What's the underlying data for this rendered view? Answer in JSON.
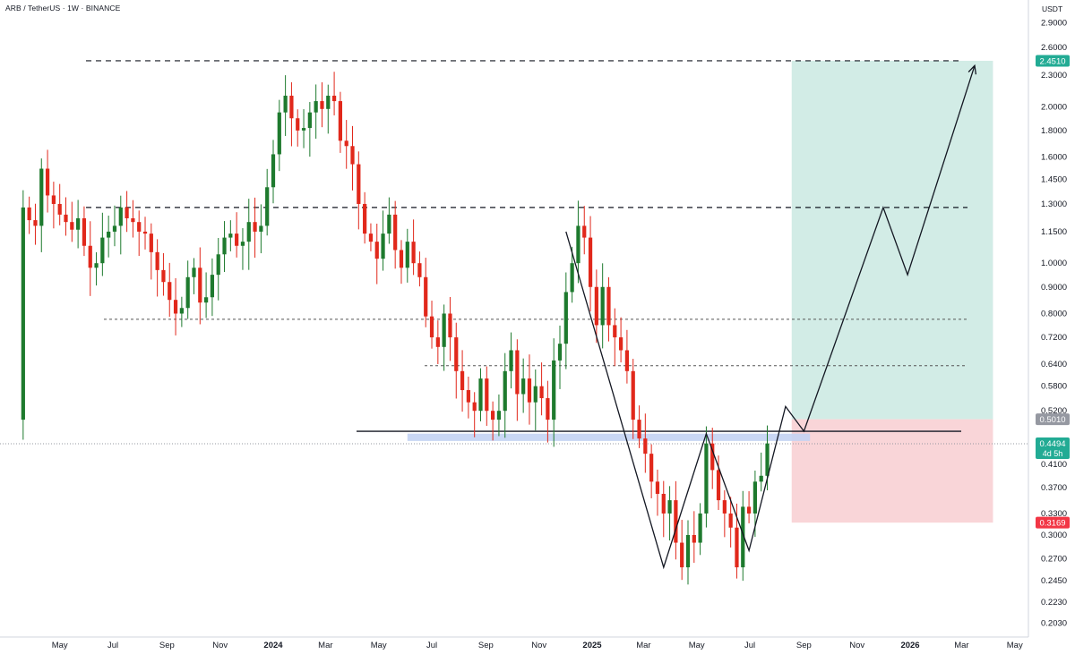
{
  "header": {
    "symbol": "ARB / TetherUS · 1W · BINANCE",
    "currency": "USDT"
  },
  "chart_data": {
    "type": "candlestick",
    "price_scale": "log",
    "y_ticks": [
      2.9,
      2.6,
      2.3,
      2.0,
      1.8,
      1.6,
      1.45,
      1.3,
      1.15,
      1.0,
      0.9,
      0.8,
      0.72,
      0.64,
      0.58,
      0.52,
      0.45,
      0.41,
      0.37,
      0.33,
      0.3,
      0.27,
      0.245,
      0.223,
      0.203
    ],
    "y_tick_labels": [
      "2.9000",
      "2.6000",
      "2.3000",
      "2.0000",
      "1.8000",
      "1.6000",
      "1.4500",
      "1.3000",
      "1.1500",
      "1.0000",
      "0.9000",
      "0.8000",
      "0.7200",
      "0.6400",
      "0.5800",
      "0.5200",
      "0.4500",
      "0.4100",
      "0.3700",
      "0.3300",
      "0.3000",
      "0.2700",
      "0.2450",
      "0.2230",
      "0.2030"
    ],
    "x_ticks": [
      {
        "label": "May",
        "date": "2023-05-01"
      },
      {
        "label": "Jul",
        "date": "2023-07-01"
      },
      {
        "label": "Sep",
        "date": "2023-09-01"
      },
      {
        "label": "Nov",
        "date": "2023-11-01"
      },
      {
        "label": "2024",
        "date": "2024-01-01",
        "bold": true
      },
      {
        "label": "Mar",
        "date": "2024-03-01"
      },
      {
        "label": "May",
        "date": "2024-05-01"
      },
      {
        "label": "Jul",
        "date": "2024-07-01"
      },
      {
        "label": "Sep",
        "date": "2024-09-01"
      },
      {
        "label": "Nov",
        "date": "2024-11-01"
      },
      {
        "label": "2025",
        "date": "2025-01-01",
        "bold": true
      },
      {
        "label": "Mar",
        "date": "2025-03-01"
      },
      {
        "label": "May",
        "date": "2025-05-01"
      },
      {
        "label": "Jul",
        "date": "2025-07-01"
      },
      {
        "label": "Sep",
        "date": "2025-09-01"
      },
      {
        "label": "Nov",
        "date": "2025-11-01"
      },
      {
        "label": "2026",
        "date": "2026-01-01",
        "bold": true
      },
      {
        "label": "Mar",
        "date": "2026-03-01"
      },
      {
        "label": "May",
        "date": "2026-05-01"
      }
    ],
    "candles_weekly_closes": [
      1.28,
      1.21,
      1.18,
      1.52,
      1.35,
      1.3,
      1.24,
      1.2,
      1.16,
      1.22,
      1.08,
      0.98,
      1.0,
      1.12,
      1.15,
      1.18,
      1.28,
      1.22,
      1.2,
      1.15,
      1.14,
      1.05,
      0.97,
      0.92,
      0.85,
      0.8,
      0.82,
      0.94,
      0.98,
      0.84,
      0.86,
      0.95,
      1.04,
      1.12,
      1.14,
      1.08,
      1.1,
      1.2,
      1.15,
      1.18,
      1.4,
      1.62,
      1.95,
      2.1,
      1.9,
      1.8,
      1.82,
      1.95,
      2.05,
      1.98,
      2.1,
      2.05,
      1.72,
      1.68,
      1.55,
      1.3,
      1.14,
      1.1,
      1.02,
      1.14,
      1.24,
      1.06,
      0.98,
      1.1,
      1.0,
      0.94,
      0.79,
      0.72,
      0.69,
      0.8,
      0.72,
      0.62,
      0.57,
      0.54,
      0.52,
      0.6,
      0.52,
      0.5,
      0.52,
      0.62,
      0.68,
      0.56,
      0.6,
      0.54,
      0.58,
      0.55,
      0.5,
      0.65,
      0.7,
      0.88,
      1.0,
      1.18,
      1.12,
      0.9,
      0.76,
      0.9,
      0.76,
      0.72,
      0.68,
      0.62,
      0.5,
      0.46,
      0.43,
      0.38,
      0.36,
      0.33,
      0.35,
      0.29,
      0.26,
      0.3,
      0.29,
      0.33,
      0.45,
      0.4,
      0.35,
      0.33,
      0.31,
      0.26,
      0.34,
      0.33,
      0.38,
      0.39,
      0.45
    ],
    "candles_weekly_opens": [
      0.5,
      1.28,
      1.21,
      1.18,
      1.52,
      1.35,
      1.3,
      1.24,
      1.2,
      1.16,
      1.22,
      1.08,
      0.98,
      1.0,
      1.12,
      1.15,
      1.18,
      1.28,
      1.22,
      1.2,
      1.15,
      1.14,
      1.05,
      0.97,
      0.92,
      0.85,
      0.8,
      0.82,
      0.94,
      0.98,
      0.84,
      0.86,
      0.95,
      1.04,
      1.12,
      1.14,
      1.08,
      1.1,
      1.2,
      1.15,
      1.18,
      1.4,
      1.62,
      1.95,
      2.1,
      1.9,
      1.8,
      1.82,
      1.95,
      2.05,
      1.98,
      2.1,
      2.05,
      1.72,
      1.68,
      1.55,
      1.3,
      1.14,
      1.1,
      1.02,
      1.14,
      1.24,
      1.06,
      0.98,
      1.1,
      1.0,
      0.94,
      0.79,
      0.72,
      0.69,
      0.8,
      0.72,
      0.62,
      0.57,
      0.54,
      0.52,
      0.6,
      0.52,
      0.5,
      0.52,
      0.62,
      0.68,
      0.56,
      0.6,
      0.54,
      0.58,
      0.55,
      0.5,
      0.65,
      0.7,
      0.88,
      1.0,
      1.18,
      1.12,
      0.9,
      0.76,
      0.9,
      0.76,
      0.72,
      0.68,
      0.62,
      0.5,
      0.46,
      0.43,
      0.38,
      0.36,
      0.33,
      0.35,
      0.29,
      0.26,
      0.3,
      0.29,
      0.33,
      0.45,
      0.4,
      0.35,
      0.33,
      0.31,
      0.26,
      0.34,
      0.33,
      0.38,
      0.39
    ],
    "first_candle_date": "2023-03-20",
    "levels": {
      "top_dashed": 2.451,
      "upper_dashed": 1.28,
      "mid_dotted_1": 0.78,
      "mid_dotted_2": 0.635,
      "support_line": 0.475,
      "support_zone_top": 0.47,
      "support_zone_bottom": 0.455
    },
    "position": {
      "entry": 0.501,
      "target": 2.451,
      "stop": 0.3169,
      "start_date": "2025-08-18",
      "end_date": "2026-04-06"
    },
    "projection_path": [
      {
        "date": "2024-12-02",
        "price": 1.15
      },
      {
        "date": "2025-03-24",
        "price": 0.26
      },
      {
        "date": "2025-05-12",
        "price": 0.47
      },
      {
        "date": "2025-06-30",
        "price": 0.28
      },
      {
        "date": "2025-08-11",
        "price": 0.53
      },
      {
        "date": "2025-09-01",
        "price": 0.475
      },
      {
        "date": "2025-12-01",
        "price": 1.28
      },
      {
        "date": "2025-12-29",
        "price": 0.95
      },
      {
        "date": "2026-03-16",
        "price": 2.4
      }
    ],
    "price_tags": [
      {
        "value": "2.4510",
        "price": 2.451,
        "color": "#22ab94"
      },
      {
        "value": "0.5010",
        "price": 0.501,
        "color": "#9598a1"
      },
      {
        "value": "0.4494",
        "sub": "4d 5h",
        "price": 0.4494,
        "color": "#22ab94"
      },
      {
        "value": "0.3169",
        "price": 0.3169,
        "color": "#f23645"
      }
    ],
    "colors": {
      "up": "#1e7a2e",
      "down": "#e1281b",
      "profit_zone": "#d2ece6",
      "loss_zone": "#f9d5d8",
      "support_zone": "#c3d3f3"
    }
  }
}
